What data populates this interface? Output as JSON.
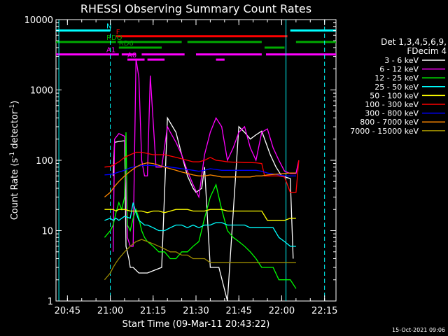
{
  "chart_data": {
    "type": "line",
    "title": "RHESSI Observing Summary Count Rates",
    "xlabel": "Start Time (09-Mar-11 20:43:22)",
    "ylabel_main": "Count Rate (s",
    "ylabel_sup": "-1",
    "ylabel_tail": " detector",
    "ylabel_close": ")",
    "yscale": "log",
    "ylim": [
      1,
      10000
    ],
    "xlim_min": [
      -2,
      96
    ],
    "x_ticks_min": [
      2,
      17,
      32,
      47,
      62,
      77,
      92
    ],
    "x_tick_labels": [
      "20:45",
      "21:00",
      "21:15",
      "21:30",
      "21:45",
      "22:00",
      "22:15"
    ],
    "y_ticks": [
      1,
      10,
      100,
      1000,
      10000
    ],
    "y_tick_labels": [
      "1",
      "10",
      "100",
      "1000",
      "10000"
    ],
    "legend_header": [
      "Det 1,3,4,5,6,9,",
      "FDecim 4"
    ],
    "legend_position": "right",
    "timestamp": "15-Oct-2021 09:06",
    "flag_labels": {
      "N": "N",
      "F": "F",
      "RDO": "RDO",
      "RD6": "RD6",
      "A0": "A0",
      "A1": "A1"
    },
    "flags": [
      {
        "label": "N",
        "color": "#00ffff",
        "y": 7000,
        "segments": [
          [
            -2,
            17
          ],
          [
            80,
            96
          ]
        ]
      },
      {
        "label": "F",
        "color": "#ff0000",
        "y": 5800,
        "segments": [
          [
            19,
            79
          ]
        ]
      },
      {
        "label": "RDO",
        "color": "#00aa00",
        "y": 4800,
        "segments": [
          [
            -2,
            19
          ],
          [
            19.5,
            42
          ],
          [
            44,
            70
          ],
          [
            82,
            96
          ]
        ]
      },
      {
        "label": "RD6",
        "color": "#00aa00",
        "y": 4000,
        "segments": [
          [
            20,
            35
          ],
          [
            71,
            78
          ]
        ]
      },
      {
        "label": "A1",
        "color": "#ff00ff",
        "y": 3200,
        "segments": [
          [
            -2,
            20
          ],
          [
            21,
            26
          ],
          [
            28,
            43
          ],
          [
            47,
            70
          ],
          [
            71.5,
            96
          ]
        ]
      },
      {
        "label": "A0",
        "color": "#ff00ff",
        "y": 2700,
        "segments": [
          [
            23,
            29
          ],
          [
            30,
            36
          ],
          [
            54,
            57
          ]
        ]
      }
    ],
    "vlines_dashed": [
      {
        "x": 17,
        "color": "#00ffff"
      },
      {
        "x": 92,
        "color": "#00ffff"
      }
    ],
    "vlines_solid": [
      {
        "x": -1,
        "color": "#00ffff"
      },
      {
        "x": 78.5,
        "color": "#00ffff"
      }
    ],
    "series": [
      {
        "name": "3 - 6 keV",
        "color": "#ffffff",
        "x": [
          18,
          18.5,
          20,
          22,
          22.5,
          23.5,
          24,
          25,
          27,
          30,
          35,
          37,
          40,
          42,
          44,
          46,
          47,
          49,
          50,
          52,
          55,
          58,
          62,
          64,
          66,
          68,
          70,
          73,
          75,
          77,
          80,
          81
        ],
        "y": [
          60,
          180,
          185,
          190,
          6,
          4,
          3,
          3,
          2.5,
          2.5,
          3,
          400,
          250,
          120,
          60,
          40,
          35,
          40,
          80,
          3,
          3,
          1,
          300,
          250,
          200,
          230,
          260,
          120,
          80,
          60,
          55,
          4
        ]
      },
      {
        "name": "6 - 12 keV",
        "color": "#ff00ff",
        "x": [
          18,
          18.5,
          20,
          22,
          23,
          24,
          25,
          26,
          27,
          28,
          29,
          30,
          31,
          33,
          35,
          37,
          38,
          40,
          42,
          44,
          46,
          48,
          50,
          52,
          54,
          56,
          58,
          60,
          62,
          64,
          66,
          68,
          70,
          72,
          74,
          76,
          78,
          80,
          82,
          83
        ],
        "y": [
          5,
          200,
          240,
          220,
          8,
          6,
          6,
          2800,
          1500,
          100,
          60,
          60,
          1600,
          80,
          80,
          300,
          250,
          180,
          120,
          70,
          45,
          30,
          120,
          250,
          400,
          300,
          100,
          150,
          250,
          300,
          150,
          100,
          250,
          280,
          150,
          100,
          70,
          65,
          65,
          100
        ]
      },
      {
        "name": "12 - 25 keV",
        "color": "#00ff00",
        "x": [
          15,
          17,
          18,
          19,
          20,
          21,
          22,
          22.5,
          23,
          24,
          25,
          26,
          27,
          28,
          29,
          30,
          32,
          34,
          36,
          38,
          40,
          42,
          44,
          46,
          48,
          50,
          52,
          54,
          56,
          58,
          60,
          62,
          64,
          66,
          68,
          70,
          72,
          74,
          76,
          78,
          80,
          82
        ],
        "y": [
          8,
          10,
          12,
          18,
          25,
          20,
          30,
          250,
          12,
          10,
          15,
          20,
          15,
          10,
          8,
          7,
          6,
          5,
          5,
          4,
          4,
          5,
          5,
          6,
          7,
          15,
          30,
          45,
          20,
          10,
          8,
          7,
          6,
          5,
          4,
          3,
          3,
          3,
          2,
          2,
          2,
          1.5
        ]
      },
      {
        "name": "25 - 50 keV",
        "color": "#00ffff",
        "x": [
          15,
          17,
          18,
          19,
          20,
          22,
          24,
          25,
          26,
          27,
          28,
          29,
          30,
          32,
          34,
          36,
          38,
          40,
          42,
          44,
          46,
          48,
          50,
          52,
          54,
          56,
          58,
          60,
          62,
          64,
          66,
          68,
          70,
          72,
          74,
          76,
          78,
          80,
          82
        ],
        "y": [
          14,
          15,
          14,
          15,
          14,
          16,
          15,
          25,
          18,
          14,
          13,
          12,
          12,
          11,
          10,
          10,
          11,
          12,
          12,
          11,
          12,
          11,
          12,
          12,
          13,
          13,
          12,
          12,
          12,
          12,
          11,
          11,
          11,
          11,
          11,
          8,
          7,
          6,
          6
        ]
      },
      {
        "name": "50 - 100 keV",
        "color": "#ffff00",
        "x": [
          15,
          17,
          18,
          19,
          20,
          22,
          24,
          26,
          28,
          30,
          32,
          34,
          36,
          38,
          40,
          42,
          44,
          46,
          48,
          50,
          52,
          54,
          56,
          58,
          60,
          62,
          64,
          66,
          68,
          70,
          72,
          74,
          76,
          78,
          80,
          82
        ],
        "y": [
          20,
          20,
          20,
          19,
          20,
          20,
          19,
          19,
          19,
          18,
          19,
          19,
          18,
          19,
          20,
          20,
          20,
          19,
          19,
          19,
          20,
          20,
          20,
          19,
          19,
          19,
          19,
          19,
          19,
          19,
          14,
          14,
          14,
          14,
          15,
          15
        ]
      },
      {
        "name": "100 - 300 keV",
        "color": "#ff0000",
        "x": [
          15,
          17,
          18,
          19,
          20,
          22,
          24,
          26,
          28,
          30,
          32,
          34,
          36,
          38,
          40,
          42,
          44,
          46,
          48,
          50,
          52,
          54,
          56,
          58,
          60,
          62,
          64,
          66,
          68,
          70,
          71,
          72,
          74,
          76,
          78,
          80,
          82,
          83
        ],
        "y": [
          80,
          82,
          85,
          90,
          95,
          110,
          120,
          130,
          130,
          125,
          120,
          120,
          120,
          115,
          110,
          105,
          100,
          95,
          95,
          100,
          110,
          100,
          98,
          95,
          94,
          94,
          93,
          93,
          92,
          90,
          60,
          60,
          60,
          60,
          58,
          35,
          35,
          100
        ]
      },
      {
        "name": "300 - 800 keV",
        "color": "#0000ff",
        "x": [
          15,
          17,
          18,
          19,
          20,
          22,
          24,
          26,
          28,
          30,
          32,
          34,
          36,
          38,
          40,
          42,
          44,
          46,
          48,
          50,
          52,
          54,
          56,
          58,
          60,
          62,
          64,
          66,
          68,
          70,
          72,
          74,
          76,
          78,
          80,
          82
        ],
        "y": [
          62,
          63,
          64,
          66,
          68,
          72,
          78,
          82,
          84,
          85,
          84,
          83,
          82,
          80,
          78,
          76,
          74,
          72,
          70,
          72,
          76,
          74,
          72,
          72,
          72,
          72,
          72,
          72,
          72,
          70,
          66,
          64,
          62,
          60,
          60,
          60
        ]
      },
      {
        "name": "800 - 7000 keV",
        "color": "#ff8800",
        "x": [
          15,
          17,
          18,
          19,
          20,
          22,
          24,
          26,
          28,
          30,
          32,
          34,
          36,
          38,
          40,
          42,
          44,
          46,
          48,
          50,
          52,
          54,
          56,
          58,
          60,
          62,
          64,
          66,
          68,
          70,
          72,
          74,
          76,
          78,
          80,
          82
        ],
        "y": [
          30,
          35,
          40,
          45,
          50,
          60,
          70,
          80,
          88,
          92,
          90,
          85,
          80,
          76,
          72,
          68,
          65,
          62,
          60,
          60,
          62,
          60,
          58,
          58,
          58,
          58,
          58,
          58,
          60,
          60,
          62,
          63,
          64,
          65,
          66,
          66
        ]
      },
      {
        "name": "7000 - 15000 keV",
        "color": "#9a8a00",
        "x": [
          15,
          17,
          18,
          19,
          20,
          22,
          24,
          26,
          28,
          30,
          32,
          34,
          36,
          38,
          40,
          42,
          44,
          46,
          48,
          50,
          52,
          54,
          56,
          58,
          60,
          62,
          64,
          66,
          68,
          70,
          72,
          74,
          76,
          78,
          80,
          82
        ],
        "y": [
          2,
          2.5,
          3,
          3.5,
          4,
          5,
          6,
          7,
          7.5,
          7,
          6.5,
          6,
          5.5,
          5,
          5,
          4.5,
          4.5,
          4,
          4,
          4,
          3.5,
          3.5,
          3.5,
          3.5,
          3.5,
          3.5,
          3.5,
          3.5,
          3.5,
          3.5,
          3.5,
          3.5,
          3.5,
          3.5,
          3.5,
          3.5
        ]
      }
    ]
  }
}
